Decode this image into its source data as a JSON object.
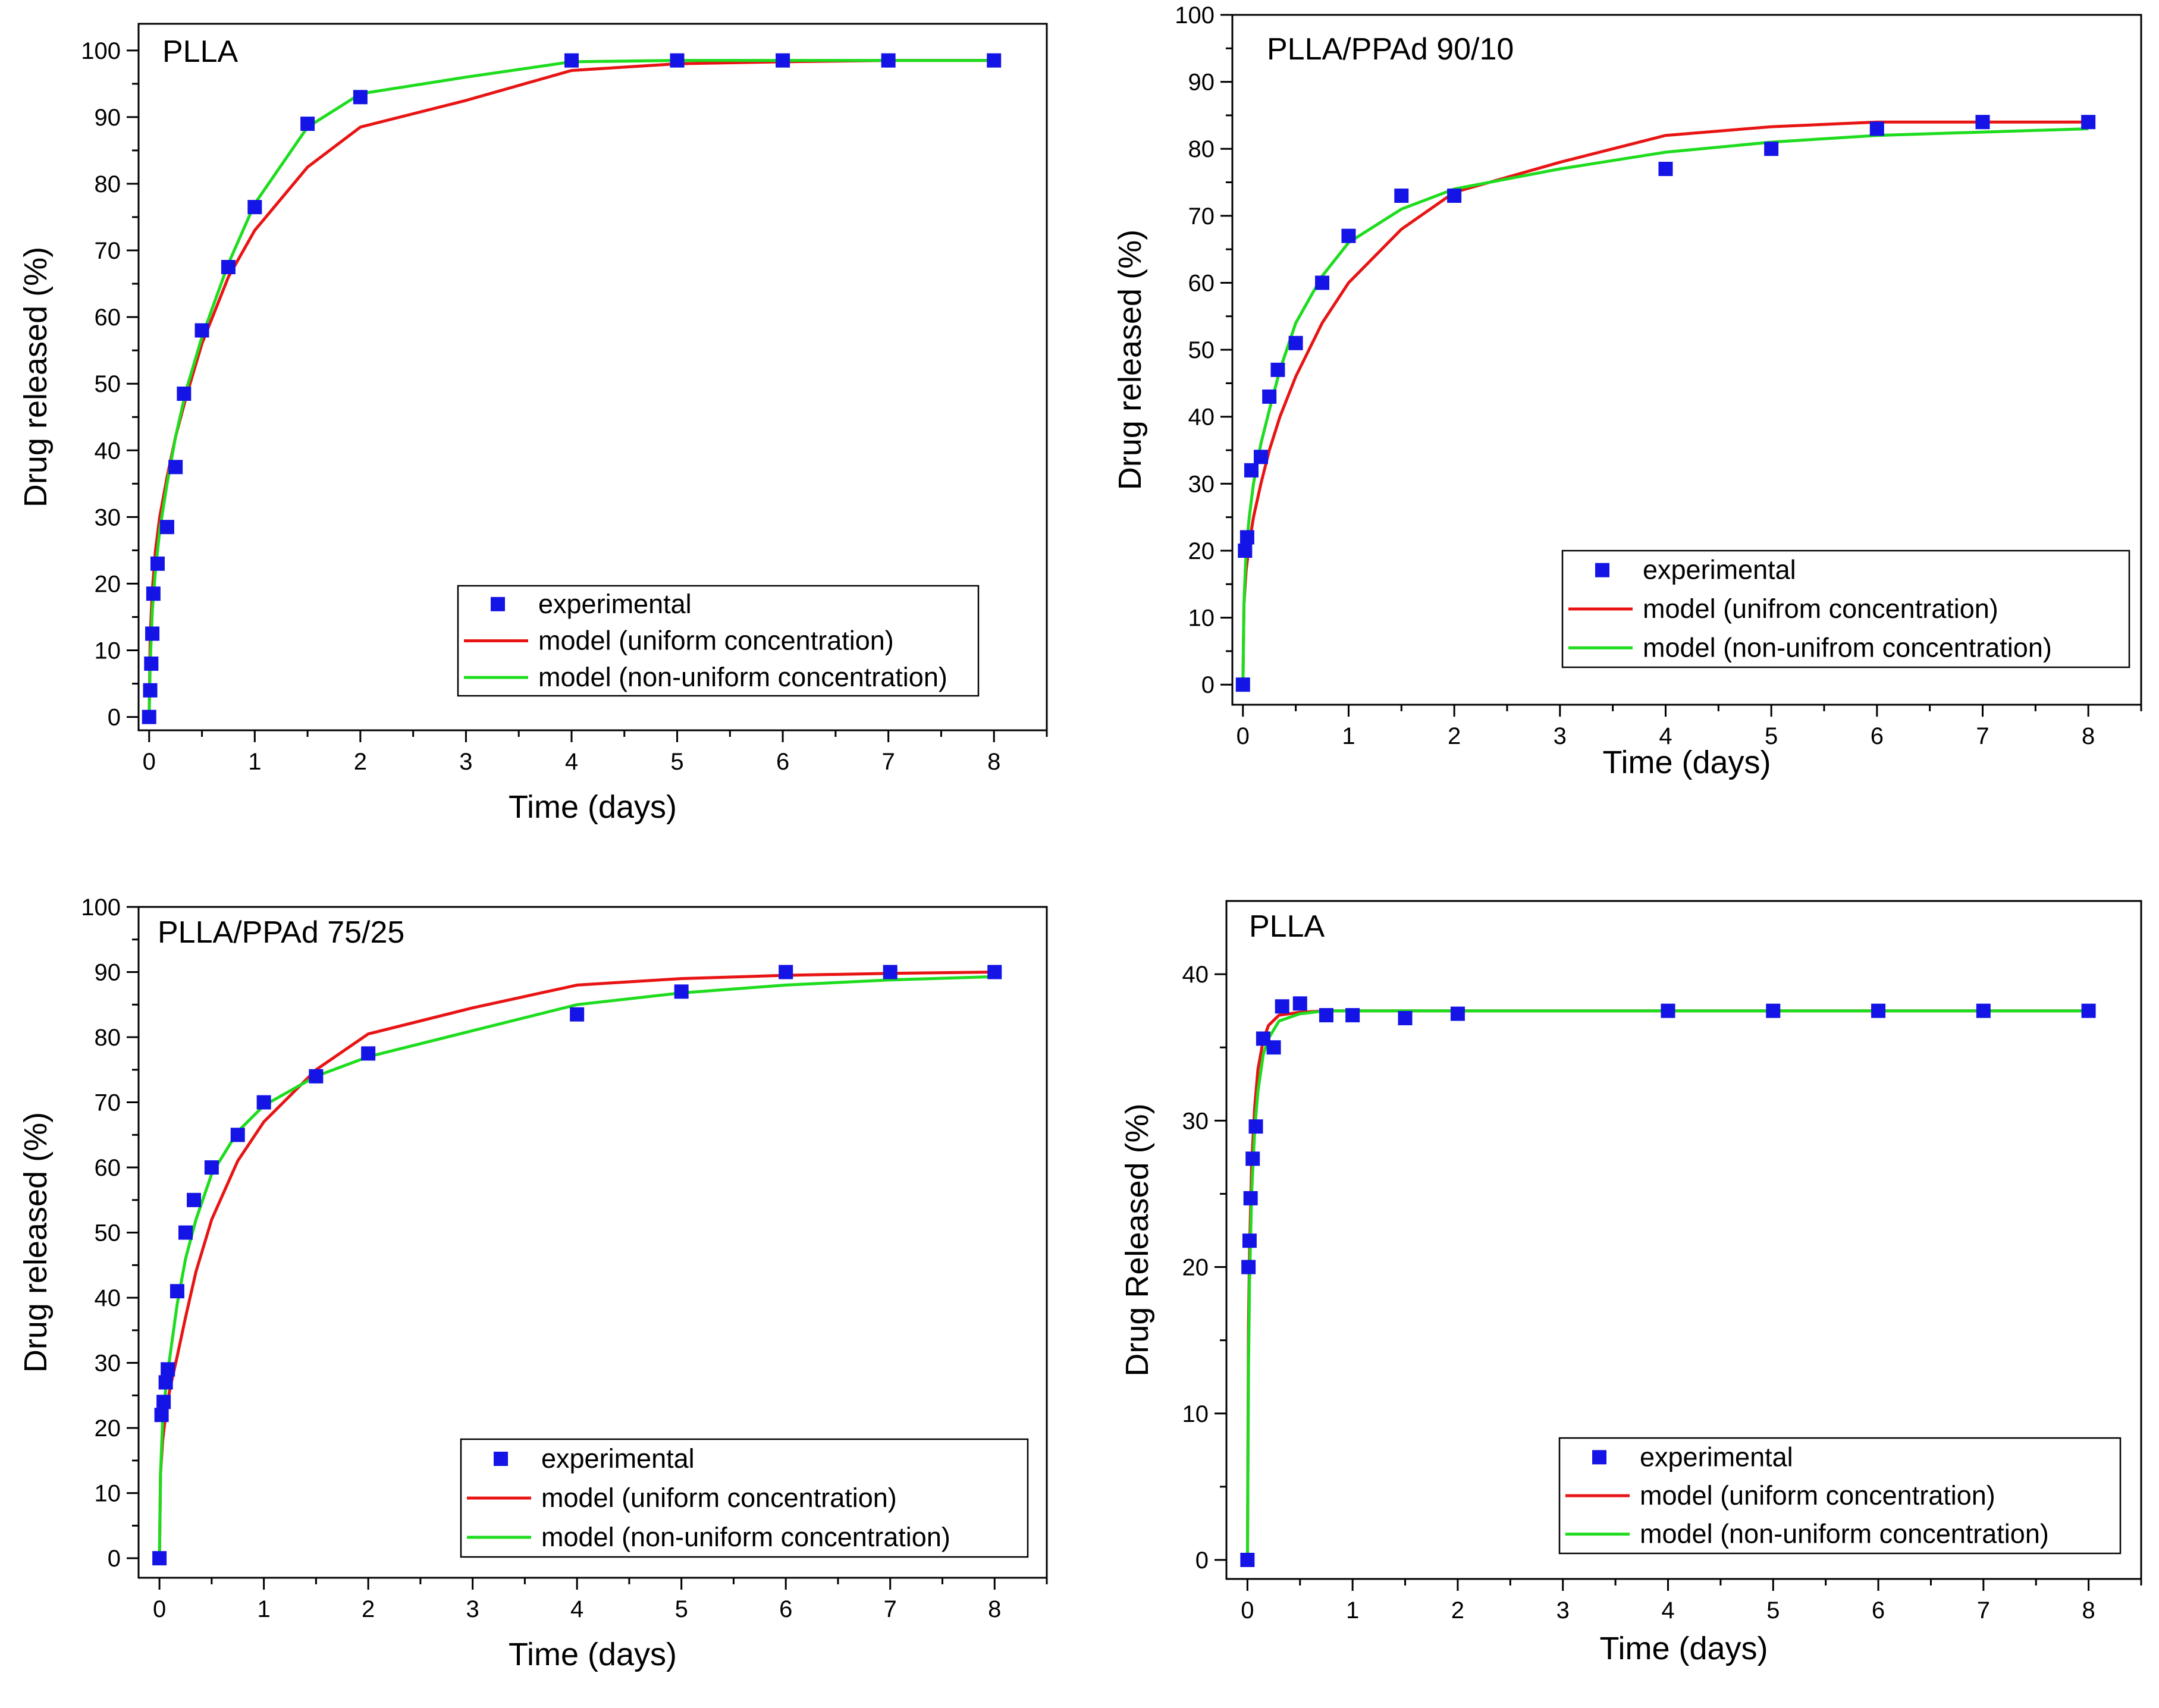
{
  "figure": "Drug release profiles: experimental data vs. model fits",
  "colors": {
    "experimental": "#1414e6",
    "uniform": "#e81414",
    "non_uniform": "#1edc1e",
    "axis": "#000000"
  },
  "chart_data": [
    {
      "type": "scatter+line",
      "title": "PLLA",
      "xlabel": "Time (days)",
      "ylabel": "Drug released (%)",
      "xlim": [
        -0.1,
        8.5
      ],
      "ylim": [
        -2,
        104
      ],
      "xticks": [
        0,
        1,
        2,
        3,
        4,
        5,
        6,
        7,
        8
      ],
      "yticks": [
        0,
        10,
        20,
        30,
        40,
        50,
        60,
        70,
        80,
        90,
        100
      ],
      "legend_position": "bottom-right",
      "series": [
        {
          "name": "experimental",
          "kind": "scatter",
          "color": "#1414e6",
          "x": [
            0,
            0.01,
            0.02,
            0.03,
            0.04,
            0.08,
            0.17,
            0.25,
            0.33,
            0.5,
            0.75,
            1,
            1.5,
            2,
            4,
            5,
            6,
            7,
            8
          ],
          "y": [
            0,
            4,
            8,
            12.5,
            18.5,
            23,
            28.5,
            37.5,
            48.5,
            58,
            67.5,
            76.5,
            89,
            93,
            98.5,
            98.5,
            98.5,
            98.5,
            98.5
          ]
        },
        {
          "name": "model (uniform concentration)",
          "kind": "line",
          "color": "#e81414",
          "x": [
            0,
            0.01,
            0.03,
            0.06,
            0.1,
            0.17,
            0.25,
            0.35,
            0.5,
            0.75,
            1,
            1.5,
            2,
            3,
            4,
            5,
            6,
            7,
            8
          ],
          "y": [
            0,
            12,
            19,
            25,
            30,
            36,
            42,
            48,
            56,
            66,
            73,
            82.5,
            88.5,
            92.5,
            97,
            98,
            98.3,
            98.5,
            98.5
          ]
        },
        {
          "name": "model (non-uniform concentration)",
          "kind": "line",
          "color": "#1edc1e",
          "x": [
            0,
            0.01,
            0.03,
            0.06,
            0.1,
            0.17,
            0.25,
            0.35,
            0.5,
            0.75,
            1,
            1.5,
            2,
            3,
            4,
            5,
            6,
            7,
            8
          ],
          "y": [
            0,
            8,
            16,
            22,
            28,
            35,
            42,
            49,
            57,
            68,
            77,
            88.5,
            93.5,
            96,
            98.3,
            98.5,
            98.5,
            98.5,
            98.5
          ]
        }
      ]
    },
    {
      "type": "scatter+line",
      "title": "PLLA/PPAd 90/10",
      "xlabel": "Time (days)",
      "ylabel": "Drug released (%)",
      "xlim": [
        -0.1,
        8.5
      ],
      "ylim": [
        -3,
        100
      ],
      "xticks": [
        0,
        1,
        2,
        3,
        4,
        5,
        6,
        7,
        8
      ],
      "yticks": [
        0,
        10,
        20,
        30,
        40,
        50,
        60,
        70,
        80,
        90,
        100
      ],
      "legend_position": "bottom-right",
      "series": [
        {
          "name": "experimental",
          "kind": "scatter",
          "color": "#1414e6",
          "x": [
            0,
            0.02,
            0.04,
            0.08,
            0.17,
            0.25,
            0.33,
            0.5,
            0.75,
            1,
            1.5,
            2,
            4,
            5,
            6,
            7,
            8
          ],
          "y": [
            0,
            20,
            22,
            32,
            34,
            43,
            47,
            51,
            60,
            67,
            73,
            73,
            77,
            80,
            83,
            84,
            84
          ]
        },
        {
          "name": "model (unifrom concentration)",
          "kind": "line",
          "color": "#e81414",
          "x": [
            0,
            0.01,
            0.03,
            0.06,
            0.1,
            0.17,
            0.25,
            0.35,
            0.5,
            0.75,
            1,
            1.5,
            2,
            3,
            4,
            5,
            6,
            7,
            8
          ],
          "y": [
            0,
            12,
            17,
            21,
            25,
            30,
            35,
            40,
            46,
            54,
            60,
            68,
            73.5,
            78,
            82,
            83.3,
            84,
            84,
            84
          ]
        },
        {
          "name": "model (non-unifrom concentration)",
          "kind": "line",
          "color": "#1edc1e",
          "x": [
            0,
            0.01,
            0.03,
            0.06,
            0.1,
            0.17,
            0.25,
            0.35,
            0.5,
            0.75,
            1,
            1.5,
            2,
            3,
            4,
            5,
            6,
            7,
            8
          ],
          "y": [
            0,
            12,
            20,
            25,
            30,
            36,
            41,
            47,
            54,
            61,
            66,
            71,
            74,
            77,
            79.5,
            81,
            82,
            82.5,
            83
          ]
        }
      ]
    },
    {
      "type": "scatter+line",
      "title": "PLLA/PPAd 75/25",
      "xlabel": "Time (days)",
      "ylabel": "Drug released (%)",
      "xlim": [
        -0.2,
        8.5
      ],
      "ylim": [
        -3,
        100
      ],
      "xticks": [
        0,
        1,
        2,
        3,
        4,
        5,
        6,
        7,
        8
      ],
      "yticks": [
        0,
        10,
        20,
        30,
        40,
        50,
        60,
        70,
        80,
        90,
        100
      ],
      "legend_position": "bottom-right",
      "series": [
        {
          "name": "experimental",
          "kind": "scatter",
          "color": "#1414e6",
          "x": [
            0,
            0.02,
            0.04,
            0.06,
            0.08,
            0.17,
            0.25,
            0.33,
            0.5,
            0.75,
            1,
            1.5,
            2,
            4,
            5,
            6,
            7,
            8
          ],
          "y": [
            0,
            22,
            24,
            27,
            29,
            41,
            50,
            55,
            60,
            65,
            70,
            74,
            77.5,
            83.5,
            87,
            90,
            90,
            90
          ]
        },
        {
          "name": "model (uniform concentration)",
          "kind": "line",
          "color": "#e81414",
          "x": [
            0,
            0.01,
            0.03,
            0.06,
            0.1,
            0.17,
            0.25,
            0.35,
            0.5,
            0.75,
            1,
            1.5,
            2,
            3,
            4,
            5,
            6,
            7,
            8
          ],
          "y": [
            0,
            13,
            18,
            22,
            26,
            31,
            37,
            44,
            52,
            61,
            67,
            75,
            80.5,
            84.5,
            88,
            89,
            89.5,
            89.8,
            90
          ]
        },
        {
          "name": "model (non-uniform concentration)",
          "kind": "line",
          "color": "#1edc1e",
          "x": [
            0,
            0.01,
            0.03,
            0.06,
            0.1,
            0.17,
            0.25,
            0.35,
            0.5,
            0.75,
            1,
            1.5,
            2,
            3,
            4,
            5,
            6,
            7,
            8
          ],
          "y": [
            0,
            13,
            21,
            26,
            31,
            39,
            46,
            52,
            59,
            65.5,
            69.5,
            74,
            77,
            81,
            85,
            86.8,
            88,
            88.8,
            89.3
          ]
        }
      ]
    },
    {
      "type": "scatter+line",
      "title": "PLLA",
      "xlabel": "Time (days)",
      "ylabel": "Drug Released (%)",
      "xlim": [
        -0.2,
        8.5
      ],
      "ylim": [
        -1.3,
        45
      ],
      "xticks": [
        0,
        1,
        2,
        3,
        4,
        5,
        6,
        7,
        8
      ],
      "yticks": [
        0,
        10,
        20,
        30,
        40
      ],
      "legend_position": "bottom-right",
      "series": [
        {
          "name": "experimental",
          "kind": "scatter",
          "color": "#1414e6",
          "x": [
            0,
            0.01,
            0.02,
            0.03,
            0.05,
            0.08,
            0.15,
            0.25,
            0.33,
            0.5,
            0.75,
            1,
            1.5,
            2,
            4,
            5,
            6,
            7,
            8
          ],
          "y": [
            0,
            20,
            21.8,
            24.7,
            27.4,
            29.6,
            35.6,
            35,
            37.8,
            38,
            37.2,
            37.2,
            37,
            37.3,
            37.5,
            37.5,
            37.5,
            37.5,
            37.5
          ]
        },
        {
          "name": "model (uniform concentration)",
          "kind": "line",
          "color": "#e81414",
          "x": [
            0,
            0.01,
            0.02,
            0.04,
            0.07,
            0.1,
            0.15,
            0.2,
            0.3,
            0.5,
            0.75,
            1,
            2,
            4,
            6,
            8
          ],
          "y": [
            0,
            16,
            21,
            27,
            31,
            33.5,
            35.5,
            36.5,
            37.2,
            37.4,
            37.5,
            37.5,
            37.5,
            37.5,
            37.5,
            37.5
          ]
        },
        {
          "name": "model (non-uniform concentration)",
          "kind": "line",
          "color": "#1edc1e",
          "x": [
            0,
            0.01,
            0.02,
            0.04,
            0.07,
            0.1,
            0.15,
            0.2,
            0.3,
            0.5,
            0.75,
            1,
            2,
            4,
            6,
            8
          ],
          "y": [
            0,
            13,
            19,
            25,
            29.5,
            32,
            34.5,
            35.6,
            36.8,
            37.3,
            37.5,
            37.5,
            37.5,
            37.5,
            37.5,
            37.5
          ]
        }
      ]
    }
  ]
}
